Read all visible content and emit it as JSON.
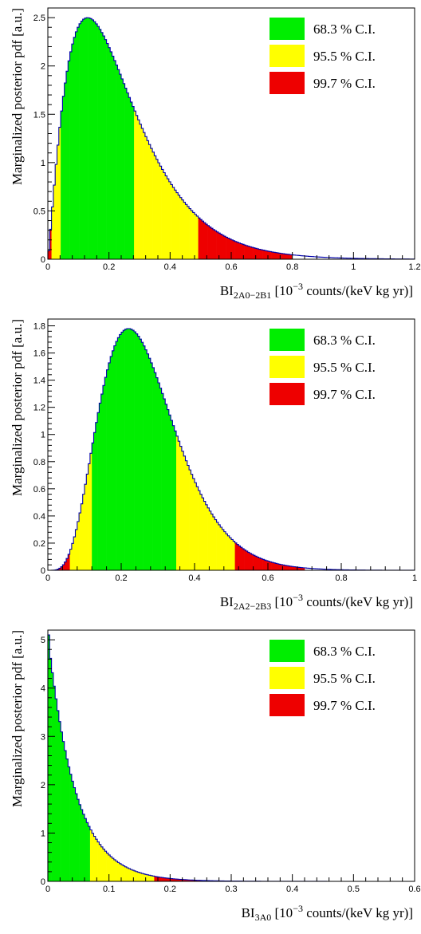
{
  "colors": {
    "ci68": "#00ee00",
    "ci95": "#ffff00",
    "ci99": "#ee0000",
    "outline": "#0000aa",
    "axis": "#000000"
  },
  "chart_data": [
    {
      "type": "area",
      "title": "",
      "xlabel_main": "BI",
      "xlabel_sub": "2A0−2B1",
      "xlabel_rest": " [10",
      "xlabel_sup": "−3",
      "xlabel_tail": " counts/(keV kg yr)]",
      "ylabel": "Marginalized posterior pdf [a.u.]",
      "xlim": [
        0,
        1.2
      ],
      "ylim": [
        0,
        2.6
      ],
      "xticks": [
        0,
        0.2,
        0.4,
        0.6,
        0.8,
        1,
        1.2
      ],
      "xtick_labels": [
        "0",
        "0.2",
        "0.4",
        "0.6",
        "0.8",
        "1",
        "1.2"
      ],
      "yticks": [
        0,
        0.5,
        1,
        1.5,
        2,
        2.5
      ],
      "ytick_labels": [
        "0",
        "0.5",
        "1",
        "1.5",
        "2",
        "2.5"
      ],
      "distribution": {
        "shape": "gamma",
        "mode": 0.13,
        "peak": 2.5,
        "k": 2.2
      },
      "intervals": {
        "ci68": [
          0.045,
          0.28
        ],
        "ci95": [
          0.012,
          0.495
        ],
        "ci99": [
          0.0,
          0.8
        ]
      },
      "legend": [
        "68.3 % C.I.",
        "95.5 % C.I.",
        "99.7 % C.I."
      ],
      "legend_position": "top-right"
    },
    {
      "type": "area",
      "title": "",
      "xlabel_main": "BI",
      "xlabel_sub": "2A2−2B3",
      "xlabel_rest": " [10",
      "xlabel_sup": "−3",
      "xlabel_tail": " counts/(keV kg yr)]",
      "ylabel": "Marginalized posterior pdf [a.u.]",
      "xlim": [
        0,
        1.0
      ],
      "ylim": [
        0,
        1.85
      ],
      "xticks": [
        0,
        0.2,
        0.4,
        0.6,
        0.8,
        1
      ],
      "xtick_labels": [
        "0",
        "0.2",
        "0.4",
        "0.6",
        "0.8",
        "1"
      ],
      "yticks": [
        0,
        0.2,
        0.4,
        0.6,
        0.8,
        1,
        1.2,
        1.4,
        1.6,
        1.8
      ],
      "ytick_labels": [
        "0",
        "0.2",
        "0.4",
        "0.6",
        "0.8",
        "1",
        "1.2",
        "1.4",
        "1.6",
        "1.8"
      ],
      "distribution": {
        "shape": "gamma",
        "mode": 0.22,
        "peak": 1.78,
        "k": 5.5
      },
      "intervals": {
        "ci68": [
          0.12,
          0.35
        ],
        "ci95": [
          0.06,
          0.51
        ],
        "ci99": [
          0.02,
          0.7
        ]
      },
      "legend": [
        "68.3 % C.I.",
        "95.5 % C.I.",
        "99.7 % C.I."
      ],
      "legend_position": "top-right"
    },
    {
      "type": "area",
      "title": "",
      "xlabel_main": "BI",
      "xlabel_sub": "3A0",
      "xlabel_rest": " [10",
      "xlabel_sup": "−3",
      "xlabel_tail": " counts/(keV kg yr)]",
      "ylabel": "Marginalized posterior pdf [a.u.]",
      "xlim": [
        0,
        0.6
      ],
      "ylim": [
        0,
        5.2
      ],
      "xticks": [
        0,
        0.1,
        0.2,
        0.3,
        0.4,
        0.5,
        0.6
      ],
      "xtick_labels": [
        "0",
        "0.1",
        "0.2",
        "0.3",
        "0.4",
        "0.5",
        "0.6"
      ],
      "yticks": [
        0,
        1,
        2,
        3,
        4,
        5
      ],
      "ytick_labels": [
        "0",
        "1",
        "2",
        "3",
        "4",
        "5"
      ],
      "distribution": {
        "shape": "exponential",
        "mode": 0.0,
        "peak": 5.1,
        "scale": 0.045
      },
      "intervals": {
        "ci68": [
          0.0,
          0.07
        ],
        "ci95": [
          0.07,
          0.175
        ],
        "ci99": [
          0.175,
          0.34
        ]
      },
      "legend": [
        "68.3 % C.I.",
        "95.5 % C.I.",
        "99.7 % C.I."
      ],
      "legend_position": "top-right"
    }
  ]
}
